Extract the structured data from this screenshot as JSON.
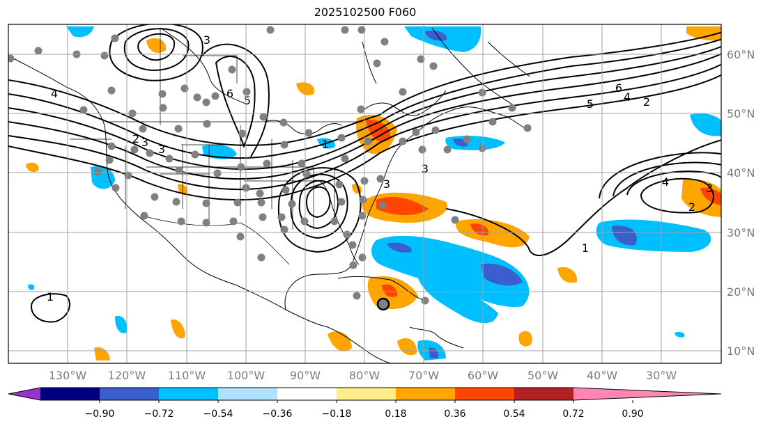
{
  "title": "2025102500 F060",
  "map": {
    "lon_labels": [
      "130°W",
      "120°W",
      "110°W",
      "100°W",
      "90°W",
      "80°W",
      "70°W",
      "60°W",
      "50°W",
      "40°W",
      "30°W"
    ],
    "lat_labels": [
      "60°N",
      "50°N",
      "40°N",
      "30°N",
      "20°N",
      "10°N"
    ],
    "contour_labels": [
      "3",
      "6",
      "5",
      "3",
      "4",
      "3",
      "2",
      "3",
      "3",
      "1",
      "6",
      "5",
      "4",
      "2",
      "4",
      "3",
      "2",
      "1",
      "1"
    ]
  },
  "colorbar": {
    "ticks": [
      "−0.90",
      "−0.72",
      "−0.54",
      "−0.36",
      "−0.18",
      "0.18",
      "0.36",
      "0.54",
      "0.72",
      "0.90"
    ],
    "colors": [
      "#9932cc",
      "#000080",
      "#3a5fcd",
      "#00bfff",
      "#b0e2ff",
      "#ffffff",
      "#ffec8b",
      "#ffa500",
      "#ff4500",
      "#b22222",
      "#ff85b3"
    ]
  },
  "colors": {
    "positive_light": "#ffa500",
    "positive_strong": "#ff4500",
    "negative_light": "#00bfff",
    "negative_strong": "#3a5fcd",
    "station_dot": "#808080"
  }
}
